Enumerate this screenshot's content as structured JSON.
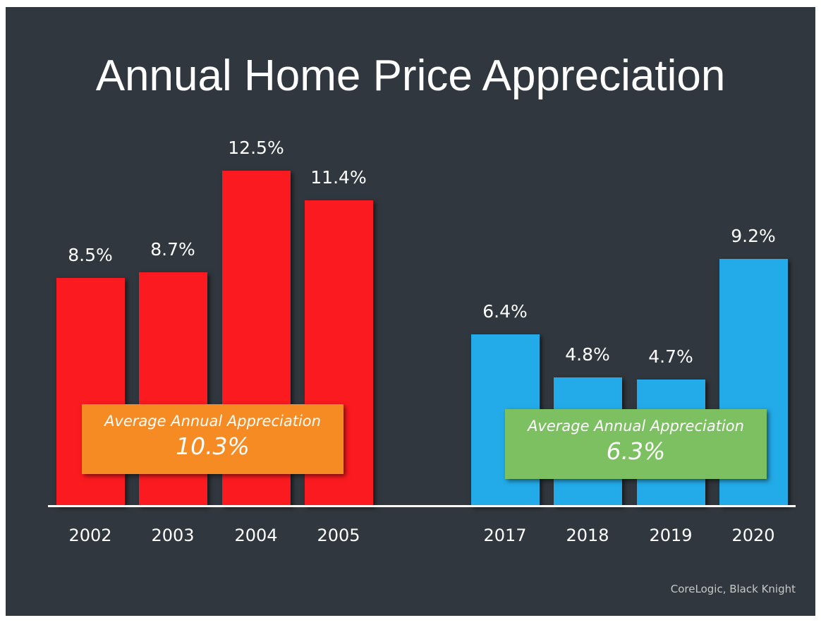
{
  "chart_data": {
    "type": "bar",
    "title": "Annual Home Price Appreciation",
    "categories": [
      "2002",
      "2003",
      "2004",
      "2005",
      "2017",
      "2018",
      "2019",
      "2020"
    ],
    "values": [
      8.5,
      8.7,
      12.5,
      11.4,
      6.4,
      4.8,
      4.7,
      9.2
    ],
    "value_labels": [
      "8.5%",
      "8.7%",
      "12.5%",
      "11.4%",
      "6.4%",
      "4.8%",
      "4.7%",
      "9.2%"
    ],
    "colors": [
      "#fb1a1f",
      "#fb1a1f",
      "#fb1a1f",
      "#fb1a1f",
      "#22abe8",
      "#22abe8",
      "#22abe8",
      "#22abe8"
    ],
    "ylim": [
      0,
      12.5
    ],
    "grid": false,
    "annotations": [
      {
        "label": "Average Annual Appreciation",
        "value": "10.3%",
        "color": "#f68b24"
      },
      {
        "label": "Average Annual Appreciation",
        "value": "6.3%",
        "color": "#7cc061"
      }
    ],
    "source": "CoreLogic, Black Knight"
  }
}
